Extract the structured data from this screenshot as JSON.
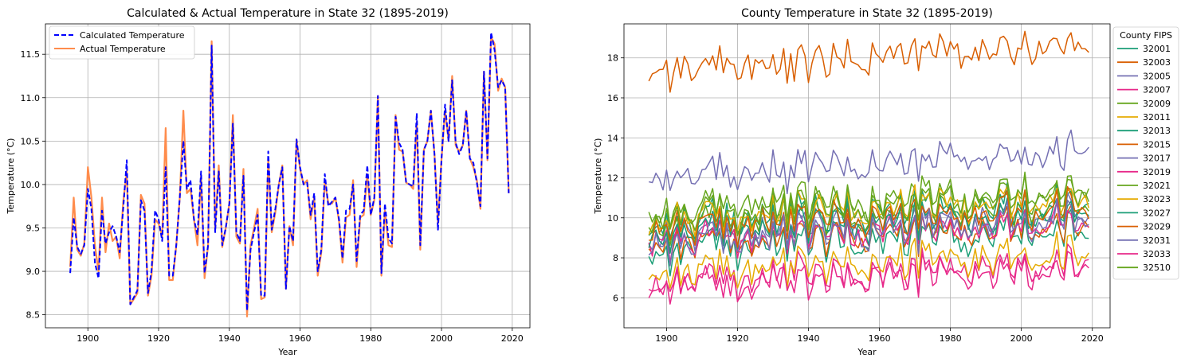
{
  "chart_data": [
    {
      "type": "line",
      "title": "Calculated & Actual Temperature in State 32 (1895-2019)",
      "xlabel": "Year",
      "ylabel": "Temperature (°C)",
      "xlim": [
        1888,
        2025
      ],
      "ylim": [
        8.35,
        11.85
      ],
      "xticks": [
        1900,
        1920,
        1940,
        1960,
        1980,
        2000,
        2020
      ],
      "yticks": [
        8.5,
        9.0,
        9.5,
        10.0,
        10.5,
        11.0,
        11.5
      ],
      "ytick_labels": [
        "8.5",
        "9.0",
        "9.5",
        "10.0",
        "10.5",
        "11.0",
        "11.5"
      ],
      "grid": true,
      "legend": "top-left",
      "x_start": 1895,
      "x_end": 2019,
      "series": [
        {
          "name": "Calculated Temperature",
          "color": "#0000ff",
          "dashed": true,
          "values": [
            8.98,
            9.62,
            9.28,
            9.2,
            9.3,
            9.95,
            9.72,
            9.1,
            8.92,
            9.7,
            9.32,
            9.45,
            9.52,
            9.4,
            9.22,
            9.72,
            10.28,
            8.62,
            8.7,
            8.78,
            9.82,
            9.7,
            8.75,
            9.0,
            9.7,
            9.6,
            9.35,
            10.2,
            8.95,
            8.95,
            9.3,
            9.85,
            10.5,
            9.95,
            10.05,
            9.6,
            9.42,
            10.15,
            8.98,
            9.3,
            11.6,
            9.45,
            10.15,
            9.3,
            9.5,
            9.78,
            10.7,
            9.45,
            9.35,
            10.1,
            8.55,
            9.25,
            9.45,
            9.65,
            8.72,
            8.72,
            10.38,
            9.48,
            9.72,
            10.0,
            10.2,
            8.8,
            9.52,
            9.35,
            10.52,
            10.2,
            10.0,
            10.02,
            9.65,
            9.9,
            9.0,
            9.25,
            10.12,
            9.75,
            9.8,
            9.85,
            9.6,
            9.15,
            9.7,
            9.72,
            10.0,
            9.12,
            9.65,
            9.7,
            10.22,
            9.65,
            9.85,
            11.02,
            8.98,
            9.78,
            9.38,
            9.32,
            10.78,
            10.48,
            10.4,
            10.02,
            10.0,
            9.98,
            10.82,
            9.3,
            10.4,
            10.5,
            10.85,
            10.35,
            9.48,
            10.3,
            10.92,
            10.5,
            11.2,
            10.48,
            10.35,
            10.45,
            10.85,
            10.3,
            10.25,
            10.02,
            9.75,
            11.3,
            10.3,
            11.75,
            11.55,
            11.12,
            11.2,
            11.12,
            9.9
          ]
        },
        {
          "name": "Actual Temperature",
          "color": "#ff8c4c",
          "dashed": false,
          "values": [
            9.05,
            9.85,
            9.25,
            9.18,
            9.32,
            10.2,
            9.85,
            9.3,
            9.0,
            9.85,
            9.22,
            9.55,
            9.35,
            9.4,
            9.15,
            9.8,
            10.15,
            8.62,
            8.68,
            8.75,
            9.88,
            9.78,
            8.72,
            8.95,
            9.6,
            9.55,
            9.4,
            10.65,
            8.9,
            8.9,
            9.3,
            9.85,
            10.85,
            9.9,
            9.95,
            9.6,
            9.3,
            10.1,
            8.92,
            9.3,
            11.65,
            9.5,
            10.22,
            9.28,
            9.5,
            9.78,
            10.8,
            9.4,
            9.32,
            10.18,
            8.48,
            9.3,
            9.5,
            9.72,
            8.68,
            8.7,
            10.3,
            9.45,
            9.68,
            10.0,
            10.22,
            8.8,
            9.52,
            9.3,
            10.52,
            10.18,
            10.0,
            10.05,
            9.6,
            9.85,
            8.95,
            9.22,
            10.05,
            9.78,
            9.78,
            9.85,
            9.58,
            9.1,
            9.62,
            9.65,
            10.05,
            9.05,
            9.62,
            9.65,
            10.12,
            9.65,
            9.82,
            11.02,
            8.95,
            9.7,
            9.3,
            9.28,
            10.8,
            10.4,
            10.38,
            10.02,
            10.0,
            9.95,
            10.72,
            9.25,
            10.4,
            10.5,
            10.85,
            10.35,
            9.55,
            10.3,
            10.85,
            10.5,
            11.25,
            10.45,
            10.38,
            10.45,
            10.85,
            10.3,
            10.2,
            10.05,
            9.72,
            11.3,
            10.28,
            11.7,
            11.62,
            11.08,
            11.22,
            11.12,
            9.9
          ]
        }
      ]
    },
    {
      "type": "line",
      "title": "County Temperature in State 32 (1895-2019)",
      "xlabel": "Year",
      "ylabel": "Temperature (°C)",
      "xlim": [
        1888,
        2025
      ],
      "ylim": [
        4.5,
        19.7
      ],
      "xticks": [
        1900,
        1920,
        1940,
        1960,
        1980,
        2000,
        2020
      ],
      "yticks": [
        6,
        8,
        10,
        12,
        14,
        16,
        18
      ],
      "ytick_labels": [
        "6",
        "8",
        "10",
        "12",
        "14",
        "16",
        "18"
      ],
      "grid": true,
      "legend": "outside-right",
      "legend_title": "County FIPS",
      "x_start": 1895,
      "x_end": 2019,
      "series": [
        {
          "name": "32001",
          "color": "#1b9e77",
          "base": 9.7,
          "amp": 0.95,
          "trend": 1.0,
          "seed": 1
        },
        {
          "name": "32003",
          "color": "#d95f02",
          "base": 17.3,
          "amp": 0.8,
          "trend": 1.4,
          "seed": 2
        },
        {
          "name": "32005",
          "color": "#7570b3",
          "base": 9.1,
          "amp": 0.85,
          "trend": 1.1,
          "seed": 3
        },
        {
          "name": "32007",
          "color": "#e7298a",
          "base": 6.8,
          "amp": 0.85,
          "trend": 0.9,
          "seed": 4
        },
        {
          "name": "32009",
          "color": "#66a61e",
          "base": 9.6,
          "amp": 0.85,
          "trend": 1.0,
          "seed": 5
        },
        {
          "name": "32011",
          "color": "#e6ab02",
          "base": 7.2,
          "amp": 0.9,
          "trend": 1.0,
          "seed": 6
        },
        {
          "name": "32013",
          "color": "#1b9e77",
          "base": 8.3,
          "amp": 0.9,
          "trend": 1.1,
          "seed": 7
        },
        {
          "name": "32015",
          "color": "#d95f02",
          "base": 8.6,
          "amp": 0.85,
          "trend": 1.0,
          "seed": 8
        },
        {
          "name": "32017",
          "color": "#7570b3",
          "base": 11.9,
          "amp": 0.85,
          "trend": 1.4,
          "seed": 9
        },
        {
          "name": "32019",
          "color": "#e7298a",
          "base": 8.8,
          "amp": 0.85,
          "trend": 1.0,
          "seed": 10
        },
        {
          "name": "32021",
          "color": "#66a61e",
          "base": 10.3,
          "amp": 0.9,
          "trend": 1.1,
          "seed": 11
        },
        {
          "name": "32023",
          "color": "#e6ab02",
          "base": 9.9,
          "amp": 0.9,
          "trend": 1.0,
          "seed": 12
        },
        {
          "name": "32027",
          "color": "#1b9e77",
          "base": 9.2,
          "amp": 0.9,
          "trend": 1.0,
          "seed": 13
        },
        {
          "name": "32029",
          "color": "#d95f02",
          "base": 9.5,
          "amp": 0.85,
          "trend": 1.0,
          "seed": 14
        },
        {
          "name": "32031",
          "color": "#7570b3",
          "base": 8.7,
          "amp": 0.85,
          "trend": 1.2,
          "seed": 15
        },
        {
          "name": "32033",
          "color": "#e7298a",
          "base": 6.5,
          "amp": 0.85,
          "trend": 0.9,
          "seed": 16
        },
        {
          "name": "32510",
          "color": "#66a61e",
          "base": 10.0,
          "amp": 0.9,
          "trend": 1.2,
          "seed": 17
        }
      ]
    }
  ]
}
